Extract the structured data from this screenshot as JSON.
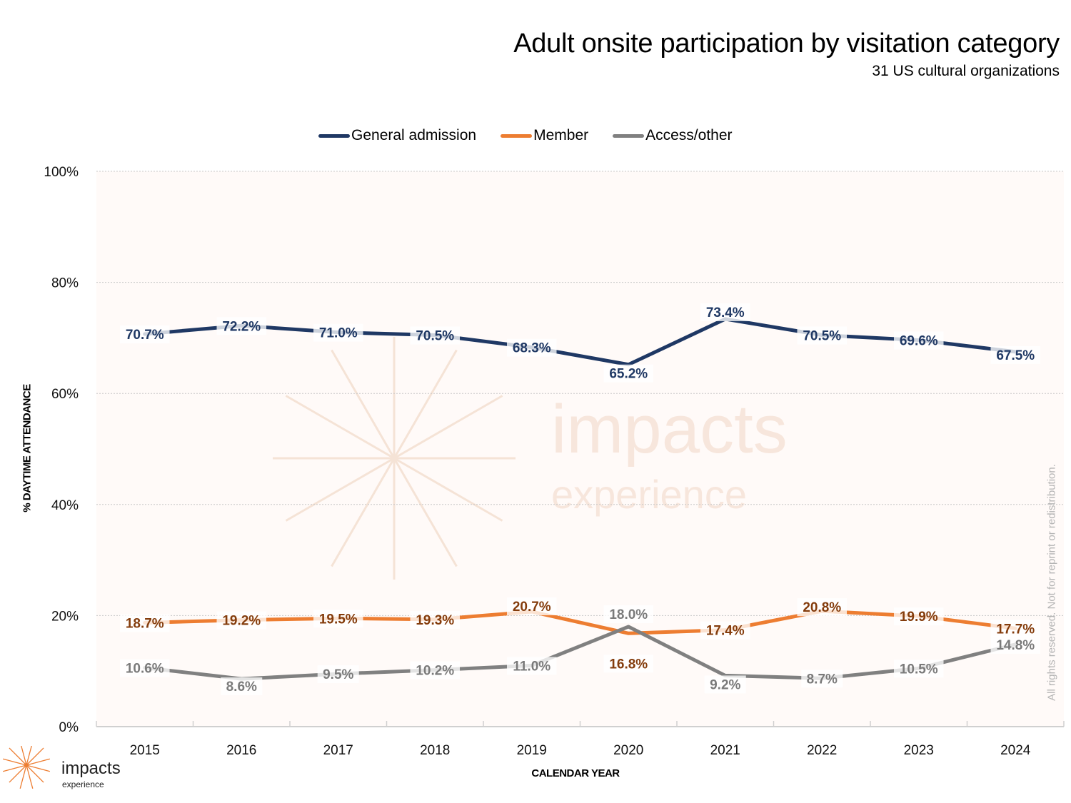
{
  "chart_data": {
    "type": "line",
    "title": "Adult onsite participation by visitation category",
    "subtitle": "31 US cultural organizations",
    "xlabel": "CALENDAR YEAR",
    "ylabel": "% DAYTIME ATTENDANCE",
    "categories": [
      "2015",
      "2016",
      "2017",
      "2018",
      "2019",
      "2020",
      "2021",
      "2022",
      "2023",
      "2024"
    ],
    "ylim": [
      0,
      100
    ],
    "yticks": [
      0,
      20,
      40,
      60,
      80,
      100
    ],
    "ytick_labels": [
      "0%",
      "20%",
      "40%",
      "60%",
      "80%",
      "100%"
    ],
    "grid": true,
    "legend_position": "top-center",
    "series": [
      {
        "name": "General admission",
        "color": "#1f3864",
        "label_color": "#1f3864",
        "values": [
          70.7,
          72.2,
          71.0,
          70.5,
          68.3,
          65.2,
          73.4,
          70.5,
          69.6,
          67.5
        ],
        "labels": [
          "70.7%",
          "72.2%",
          "71.0%",
          "70.5%",
          "68.3%",
          "65.2%",
          "73.4%",
          "70.5%",
          "69.6%",
          "67.5%"
        ]
      },
      {
        "name": "Member",
        "color": "#ed7d31",
        "label_color": "#843c0c",
        "values": [
          18.7,
          19.2,
          19.5,
          19.3,
          20.7,
          16.8,
          17.4,
          20.8,
          19.9,
          17.7
        ],
        "labels": [
          "18.7%",
          "19.2%",
          "19.5%",
          "19.3%",
          "20.7%",
          "16.8%",
          "17.4%",
          "20.8%",
          "19.9%",
          "17.7%"
        ]
      },
      {
        "name": "Access/other",
        "color": "#808080",
        "label_color": "#7a7a7a",
        "values": [
          10.6,
          8.6,
          9.5,
          10.2,
          11.0,
          18.0,
          9.2,
          8.7,
          10.5,
          14.8
        ],
        "labels": [
          "10.6%",
          "8.6%",
          "9.5%",
          "10.2%",
          "11.0%",
          "18.0%",
          "9.2%",
          "8.7%",
          "10.5%",
          "14.8%"
        ]
      }
    ]
  },
  "watermark": {
    "word": "impacts",
    "sub": "experience"
  },
  "logo": {
    "word": "impacts",
    "sub": "experience",
    "color": "#ed7d31"
  },
  "copyright": "All rights reserved. Not for reprint or redistribution."
}
